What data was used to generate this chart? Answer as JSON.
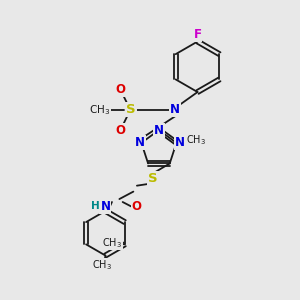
{
  "bg_color": "#e8e8e8",
  "bond_color": "#1a1a1a",
  "N_color": "#0000dd",
  "O_color": "#dd0000",
  "S_color": "#bbbb00",
  "F_color": "#cc00cc",
  "H_color": "#008888",
  "lw": 1.3,
  "fs": 8.5,
  "fs_small": 7.5,
  "xlim": [
    0,
    10
  ],
  "ylim": [
    0,
    10
  ]
}
